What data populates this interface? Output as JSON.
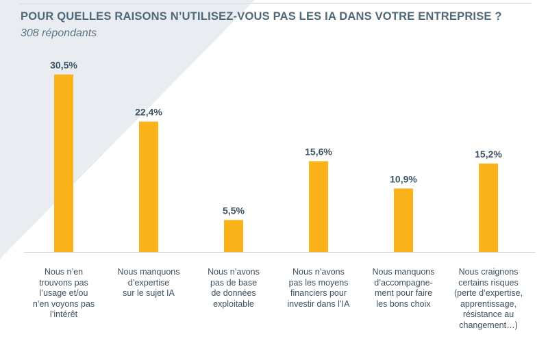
{
  "header": {
    "title": "POUR QUELLES RAISONS N’UTILISEZ-VOUS PAS LES IA DANS VOTRE ENTREPRISE ?",
    "subtitle": "308 répondants"
  },
  "colors": {
    "bar": "#fbb31b",
    "baseline": "#cdd6df",
    "value": "#3c5463",
    "background_shape": "#e9edf2"
  },
  "chart_data": {
    "type": "bar",
    "title": "POUR QUELLES RAISONS N’UTILISEZ-VOUS PAS LES IA DANS VOTRE ENTREPRISE ?",
    "subtitle": "308 répondants",
    "xlabel": "",
    "ylabel": "",
    "ylim": [
      0,
      32
    ],
    "grid": false,
    "categories": [
      "Nous n’en\ntrouvons pas\nl’usage et/ou\nn’en voyons pas\nl’intérêt",
      "Nous manquons\nd’expertise\nsur le sujet IA",
      "Nous n’avons\npas de base\nde données\nexploitable",
      "Nous n’avons\npas les moyens\nfinanciers pour\ninvestir dans l’IA",
      "Nous manquons\nd’accompagne-\nment pour faire\nles bons choix",
      "Nous craignons\ncertains risques\n(perte d’expertise,\napprentissage,\nrésistance au\nchangement…)"
    ],
    "values": [
      30.5,
      22.4,
      5.5,
      15.6,
      10.9,
      15.2
    ],
    "data_labels": [
      "30,5%",
      "22,4%",
      "5,5%",
      "15,6%",
      "10,9%",
      "15,2%"
    ]
  }
}
